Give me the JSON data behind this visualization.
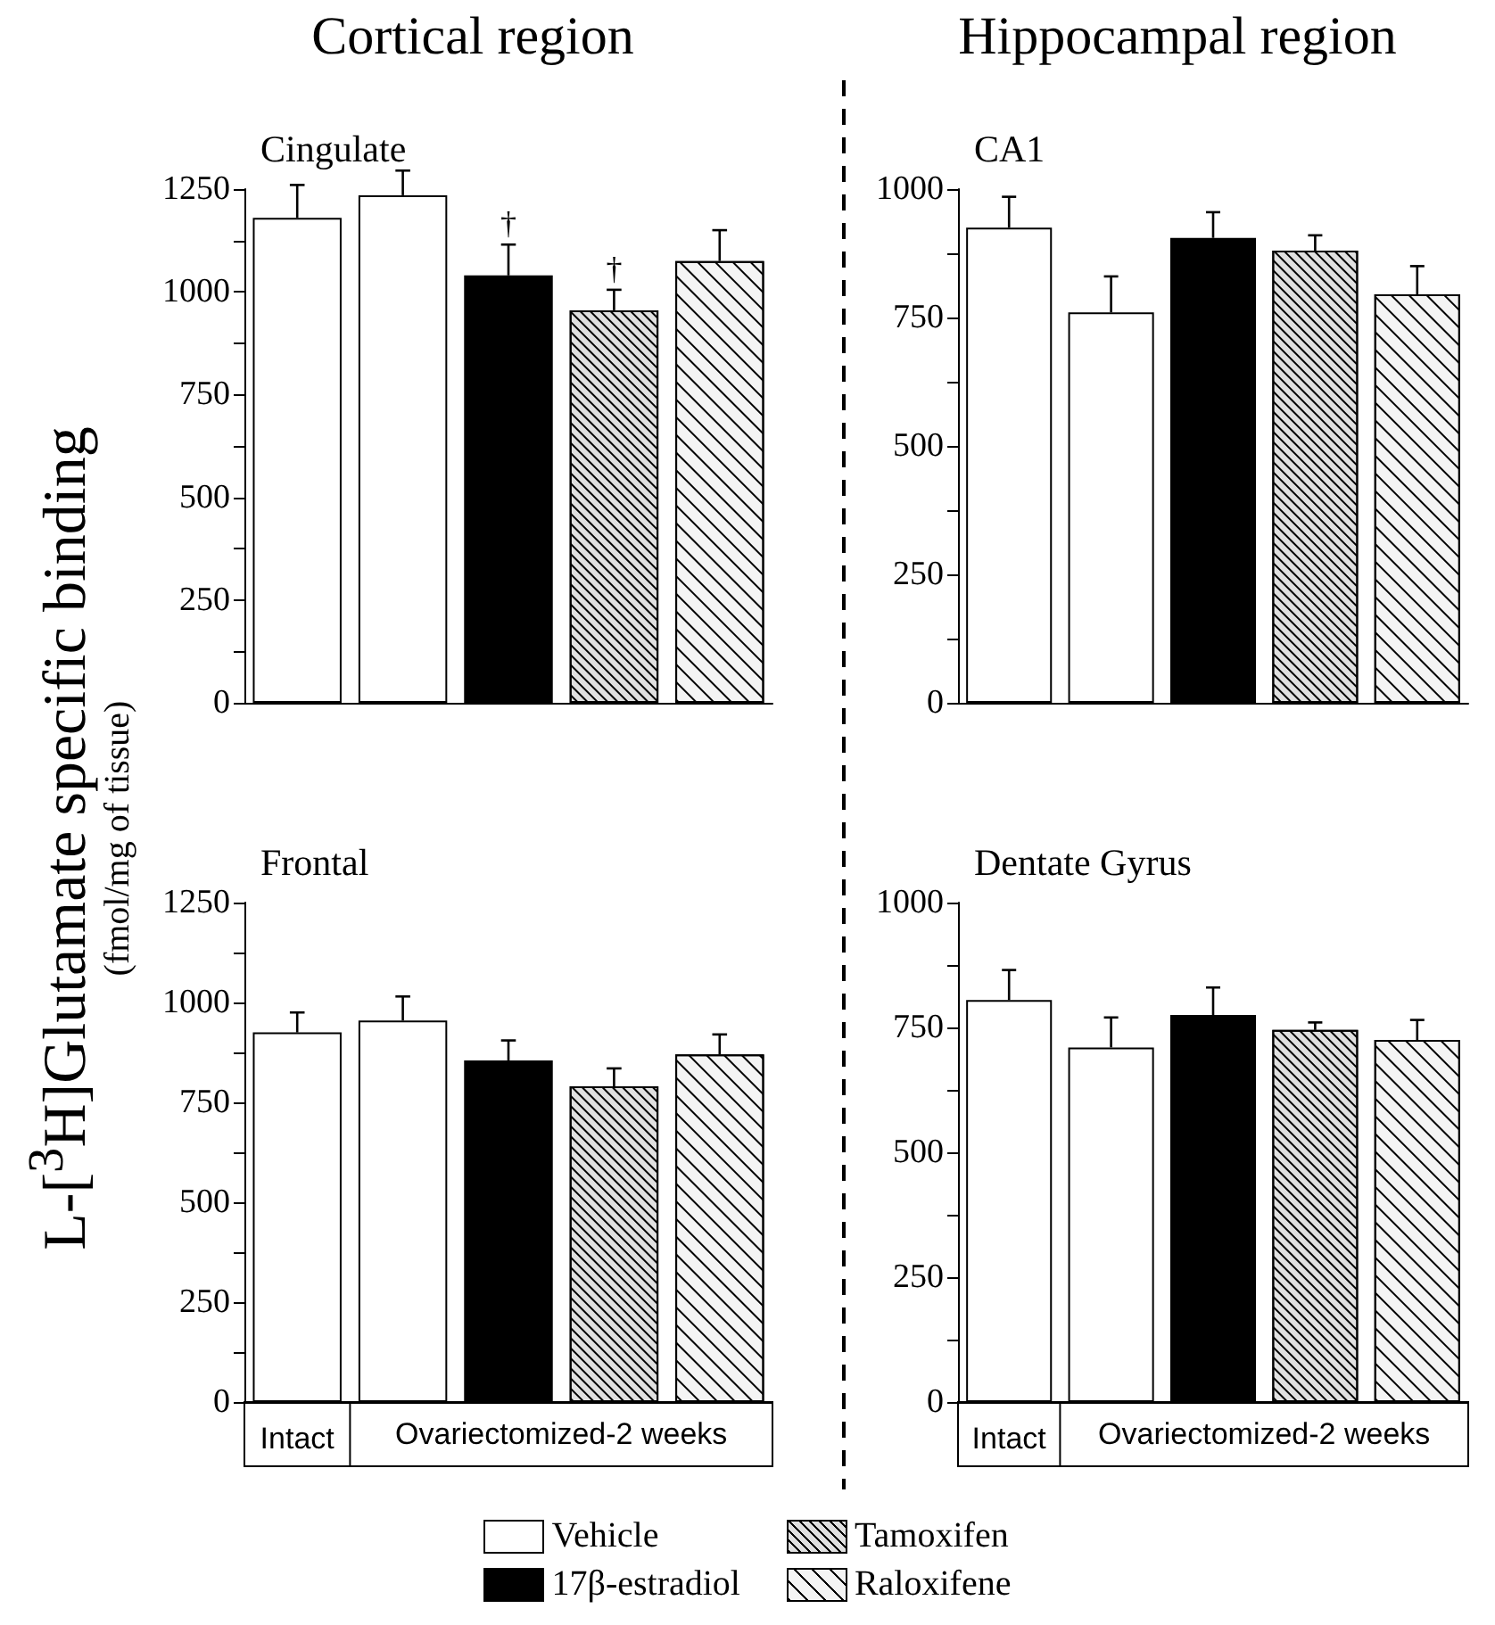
{
  "chart_data": [
    {
      "type": "bar",
      "title": "Cortical region",
      "subtitle": "Cingulate",
      "ylabel": "L-[$^{3}$H]Glutamate specific binding\n(fmol/mg of tissue)",
      "categories": [
        null,
        null,
        null,
        null,
        null
      ],
      "tick_labels": "y",
      "ylim": [
        0,
        1250
      ],
      "yticks": [
        0,
        {
          "value": 125,
          "label": null
        },
        250,
        {
          "value": 375,
          "label": null
        },
        500,
        {
          "value": 625,
          "label": null
        },
        750,
        {
          "value": 875,
          "label": null
        },
        1000,
        {
          "value": 1125,
          "label": null
        },
        1250
      ],
      "series": [
        {
          "color": "#ffffff",
          "values": [
            1180,
            1235,
            null,
            null,
            null
          ],
          "errors": [
            [
              1180,
              1260
            ],
            [
              1235,
              1295
            ],
            null,
            null,
            null
          ]
        },
        {
          "color": "#000000",
          "values": [
            null,
            null,
            1040,
            null,
            null
          ],
          "errors": [
            null,
            null,
            [
              1040,
              1115
            ],
            null,
            null
          ],
          "value_labels": [
            null,
            null,
            "†",
            null,
            null
          ]
        },
        {
          "color": "#e0e0e0",
          "values": [
            null,
            null,
            null,
            955,
            null
          ],
          "errors": [
            null,
            null,
            null,
            [
              955,
              1005
            ],
            null
          ],
          "value_labels": [
            null,
            null,
            null,
            "†",
            null
          ]
        },
        {
          "color": "#f4f4f4",
          "values": [
            null,
            null,
            null,
            null,
            1075
          ],
          "errors": [
            null,
            null,
            null,
            null,
            [
              1075,
              1150
            ]
          ]
        }
      ]
    },
    {
      "type": "bar",
      "title": "Hippocampal region",
      "subtitle": "CA1",
      "categories": [
        null,
        null,
        null,
        null,
        null
      ],
      "tick_labels": "y",
      "ylim": [
        0,
        1000
      ],
      "yticks": [
        0,
        {
          "value": 125,
          "label": null
        },
        250,
        {
          "value": 375,
          "label": null
        },
        500,
        {
          "value": 625,
          "label": null
        },
        750,
        {
          "value": 875,
          "label": null
        },
        1000
      ],
      "series": [
        {
          "color": "#ffffff",
          "values": [
            925,
            760,
            null,
            null,
            null
          ],
          "errors": [
            [
              925,
              985
            ],
            [
              760,
              830
            ],
            null,
            null,
            null
          ]
        },
        {
          "color": "#000000",
          "values": [
            null,
            null,
            905,
            null,
            null
          ],
          "errors": [
            null,
            null,
            [
              905,
              955
            ],
            null,
            null
          ]
        },
        {
          "color": "#e0e0e0",
          "values": [
            null,
            null,
            null,
            880,
            null
          ],
          "errors": [
            null,
            null,
            null,
            [
              880,
              910
            ],
            null
          ]
        },
        {
          "color": "#f4f4f4",
          "values": [
            null,
            null,
            null,
            null,
            795
          ],
          "errors": [
            null,
            null,
            null,
            null,
            [
              795,
              850
            ]
          ]
        }
      ]
    },
    {
      "type": "bar",
      "subtitle": "Frontal",
      "categories": [
        "Intact",
        null,
        null,
        null,
        null
      ],
      "annotations": [
        "Ovariectomized-2 weeks"
      ],
      "ylim": [
        0,
        1250
      ],
      "yticks": [
        0,
        {
          "value": 125,
          "label": null
        },
        250,
        {
          "value": 375,
          "label": null
        },
        500,
        {
          "value": 625,
          "label": null
        },
        750,
        {
          "value": 875,
          "label": null
        },
        1000,
        {
          "value": 1125,
          "label": null
        },
        1250
      ],
      "series": [
        {
          "color": "#ffffff",
          "values": [
            925,
            955,
            null,
            null,
            null
          ],
          "errors": [
            [
              925,
              975
            ],
            [
              955,
              1015
            ],
            null,
            null,
            null
          ]
        },
        {
          "color": "#000000",
          "values": [
            null,
            null,
            855,
            null,
            null
          ],
          "errors": [
            null,
            null,
            [
              855,
              905
            ],
            null,
            null
          ]
        },
        {
          "color": "#e0e0e0",
          "values": [
            null,
            null,
            null,
            790,
            null
          ],
          "errors": [
            null,
            null,
            null,
            [
              790,
              835
            ],
            null
          ]
        },
        {
          "color": "#f4f4f4",
          "values": [
            null,
            null,
            null,
            null,
            870
          ],
          "errors": [
            null,
            null,
            null,
            null,
            [
              870,
              920
            ]
          ]
        }
      ]
    },
    {
      "type": "bar",
      "subtitle": "Dentate Gyrus",
      "categories": [
        "Intact",
        null,
        null,
        null,
        null
      ],
      "annotations": [
        "Ovariectomized-2 weeks"
      ],
      "legend": "bottom",
      "ylim": [
        0,
        1000
      ],
      "yticks": [
        0,
        {
          "value": 125,
          "label": null
        },
        250,
        {
          "value": 375,
          "label": null
        },
        500,
        {
          "value": 625,
          "label": null
        },
        750,
        {
          "value": 875,
          "label": null
        },
        1000
      ],
      "series": [
        {
          "name": "Vehicle",
          "color": "#ffffff",
          "values": [
            805,
            710,
            null,
            null,
            null
          ],
          "errors": [
            [
              805,
              865
            ],
            [
              710,
              770
            ],
            null,
            null,
            null
          ]
        },
        {
          "name": "17β-estradiol",
          "color": "#000000",
          "values": [
            null,
            null,
            775,
            null,
            null
          ],
          "errors": [
            null,
            null,
            [
              775,
              830
            ],
            null,
            null
          ]
        },
        {
          "name": "Tamoxifen",
          "color": "#e0e0e0",
          "values": [
            null,
            null,
            null,
            745,
            null
          ],
          "errors": [
            null,
            null,
            null,
            [
              745,
              760
            ],
            null
          ]
        },
        {
          "name": "Raloxifene",
          "color": "#f4f4f4",
          "values": [
            null,
            null,
            null,
            null,
            725
          ],
          "errors": [
            null,
            null,
            null,
            null,
            [
              725,
              765
            ]
          ]
        }
      ]
    }
  ]
}
